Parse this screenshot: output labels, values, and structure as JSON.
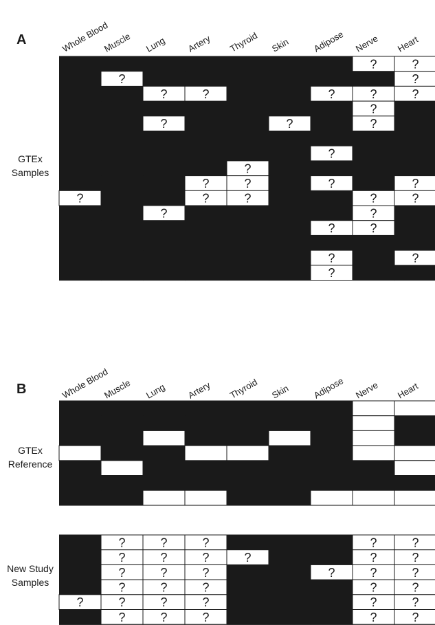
{
  "colors": {
    "filled": "#1a1a1a",
    "empty": "#ffffff",
    "grid": "#1a1a1a",
    "text": "#1a1a1a"
  },
  "tissues": [
    "Whole Blood",
    "Muscle",
    "Lung",
    "Artery",
    "Thyroid",
    "Skin",
    "Adipose",
    "Nerve",
    "Heart"
  ],
  "unknown_mark": "?",
  "panel_a": {
    "letter": "A",
    "groups": [
      {
        "label_lines": [
          "GTEx",
          "Samples"
        ],
        "legend": "cells: B = black (filled), W = white (empty), ? = white with question mark",
        "rows": [
          "BBBBBBB??",
          "B?BBBBBB?",
          "BB??BB???",
          "BBBBBBB?B",
          "BB?BB?B?B",
          "BBBBBBBBB",
          "BBBBBB?BB",
          "BBBB?BBBB",
          "BBB??B?B?",
          "?BB??BB??",
          "BB?BBBB?B",
          "BBBBBB??B",
          "BBBBBBBBB",
          "BBBBBB?B?",
          "BBBBBB?BB"
        ]
      }
    ]
  },
  "panel_b": {
    "letter": "B",
    "groups": [
      {
        "label_lines": [
          "GTEx",
          "Reference"
        ],
        "rows": [
          "BBBBBBBWW",
          "BBBBBBBWB",
          "BBWBBWBWB",
          "WBBWWBBWW",
          "BWBBBBBBW",
          "BBBBBBBBB",
          "BBWWBBWWW"
        ]
      },
      {
        "label_lines": [
          "New Study",
          "Samples"
        ],
        "rows": [
          "B???BBB??",
          "B????BB??",
          "B???BB???",
          "B???BBB??",
          "????BBB??",
          "B???BBB??"
        ]
      }
    ]
  }
}
